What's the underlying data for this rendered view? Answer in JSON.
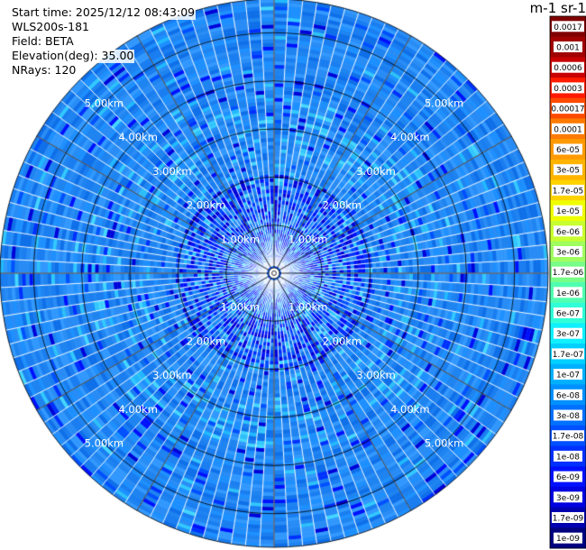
{
  "header": {
    "start_time": "Start time: 2025/12/12 08:43:09",
    "instrument": "WLS200s-181",
    "field": "Field: BETA",
    "elevation": "Elevation(deg): 35.00",
    "nrays": "NRays: 120"
  },
  "colorbar": {
    "title": "m-1 sr-1",
    "labels": [
      "0.0017",
      "0.001",
      "0.0006",
      "0.0003",
      "0.00017",
      "0.0001",
      "6e-05",
      "3e-05",
      "1.7e-05",
      "1e-05",
      "6e-06",
      "3e-06",
      "1.7e-06",
      "1e-06",
      "6e-07",
      "3e-07",
      "1.7e-07",
      "1e-07",
      "6e-08",
      "3e-08",
      "1.7e-08",
      "1e-08",
      "6e-09",
      "3e-09",
      "1.7e-09",
      "1e-09"
    ],
    "colors": [
      "#800000",
      "#a00000",
      "#c80000",
      "#ff1a00",
      "#ff4a00",
      "#ff7a00",
      "#ff9a00",
      "#ffb400",
      "#ffd200",
      "#f0ff00",
      "#c8ff30",
      "#a0ff60",
      "#78ff88",
      "#50ffb0",
      "#30ffd8",
      "#10f0ff",
      "#00d0ff",
      "#00b0ff",
      "#0090ff",
      "#0070ff",
      "#0050ff",
      "#0030ff",
      "#0010ff",
      "#0000e0",
      "#0000b0",
      "#000080"
    ]
  },
  "chart_data": {
    "type": "polar-ppi",
    "nrays": 120,
    "range_unit": "km",
    "range_max_km": 5.7,
    "range_rings_km": [
      1,
      2,
      3,
      4,
      5
    ],
    "range_ring_labels": [
      "1.00km",
      "2.00km",
      "3.00km",
      "4.00km",
      "5.00km"
    ],
    "spokes_every_deg": 30,
    "color_scale": "log",
    "value_range": [
      1e-09,
      0.0017
    ],
    "dominant_values": [
      3e-08,
      6e-08,
      1e-07,
      1.7e-08
    ]
  }
}
